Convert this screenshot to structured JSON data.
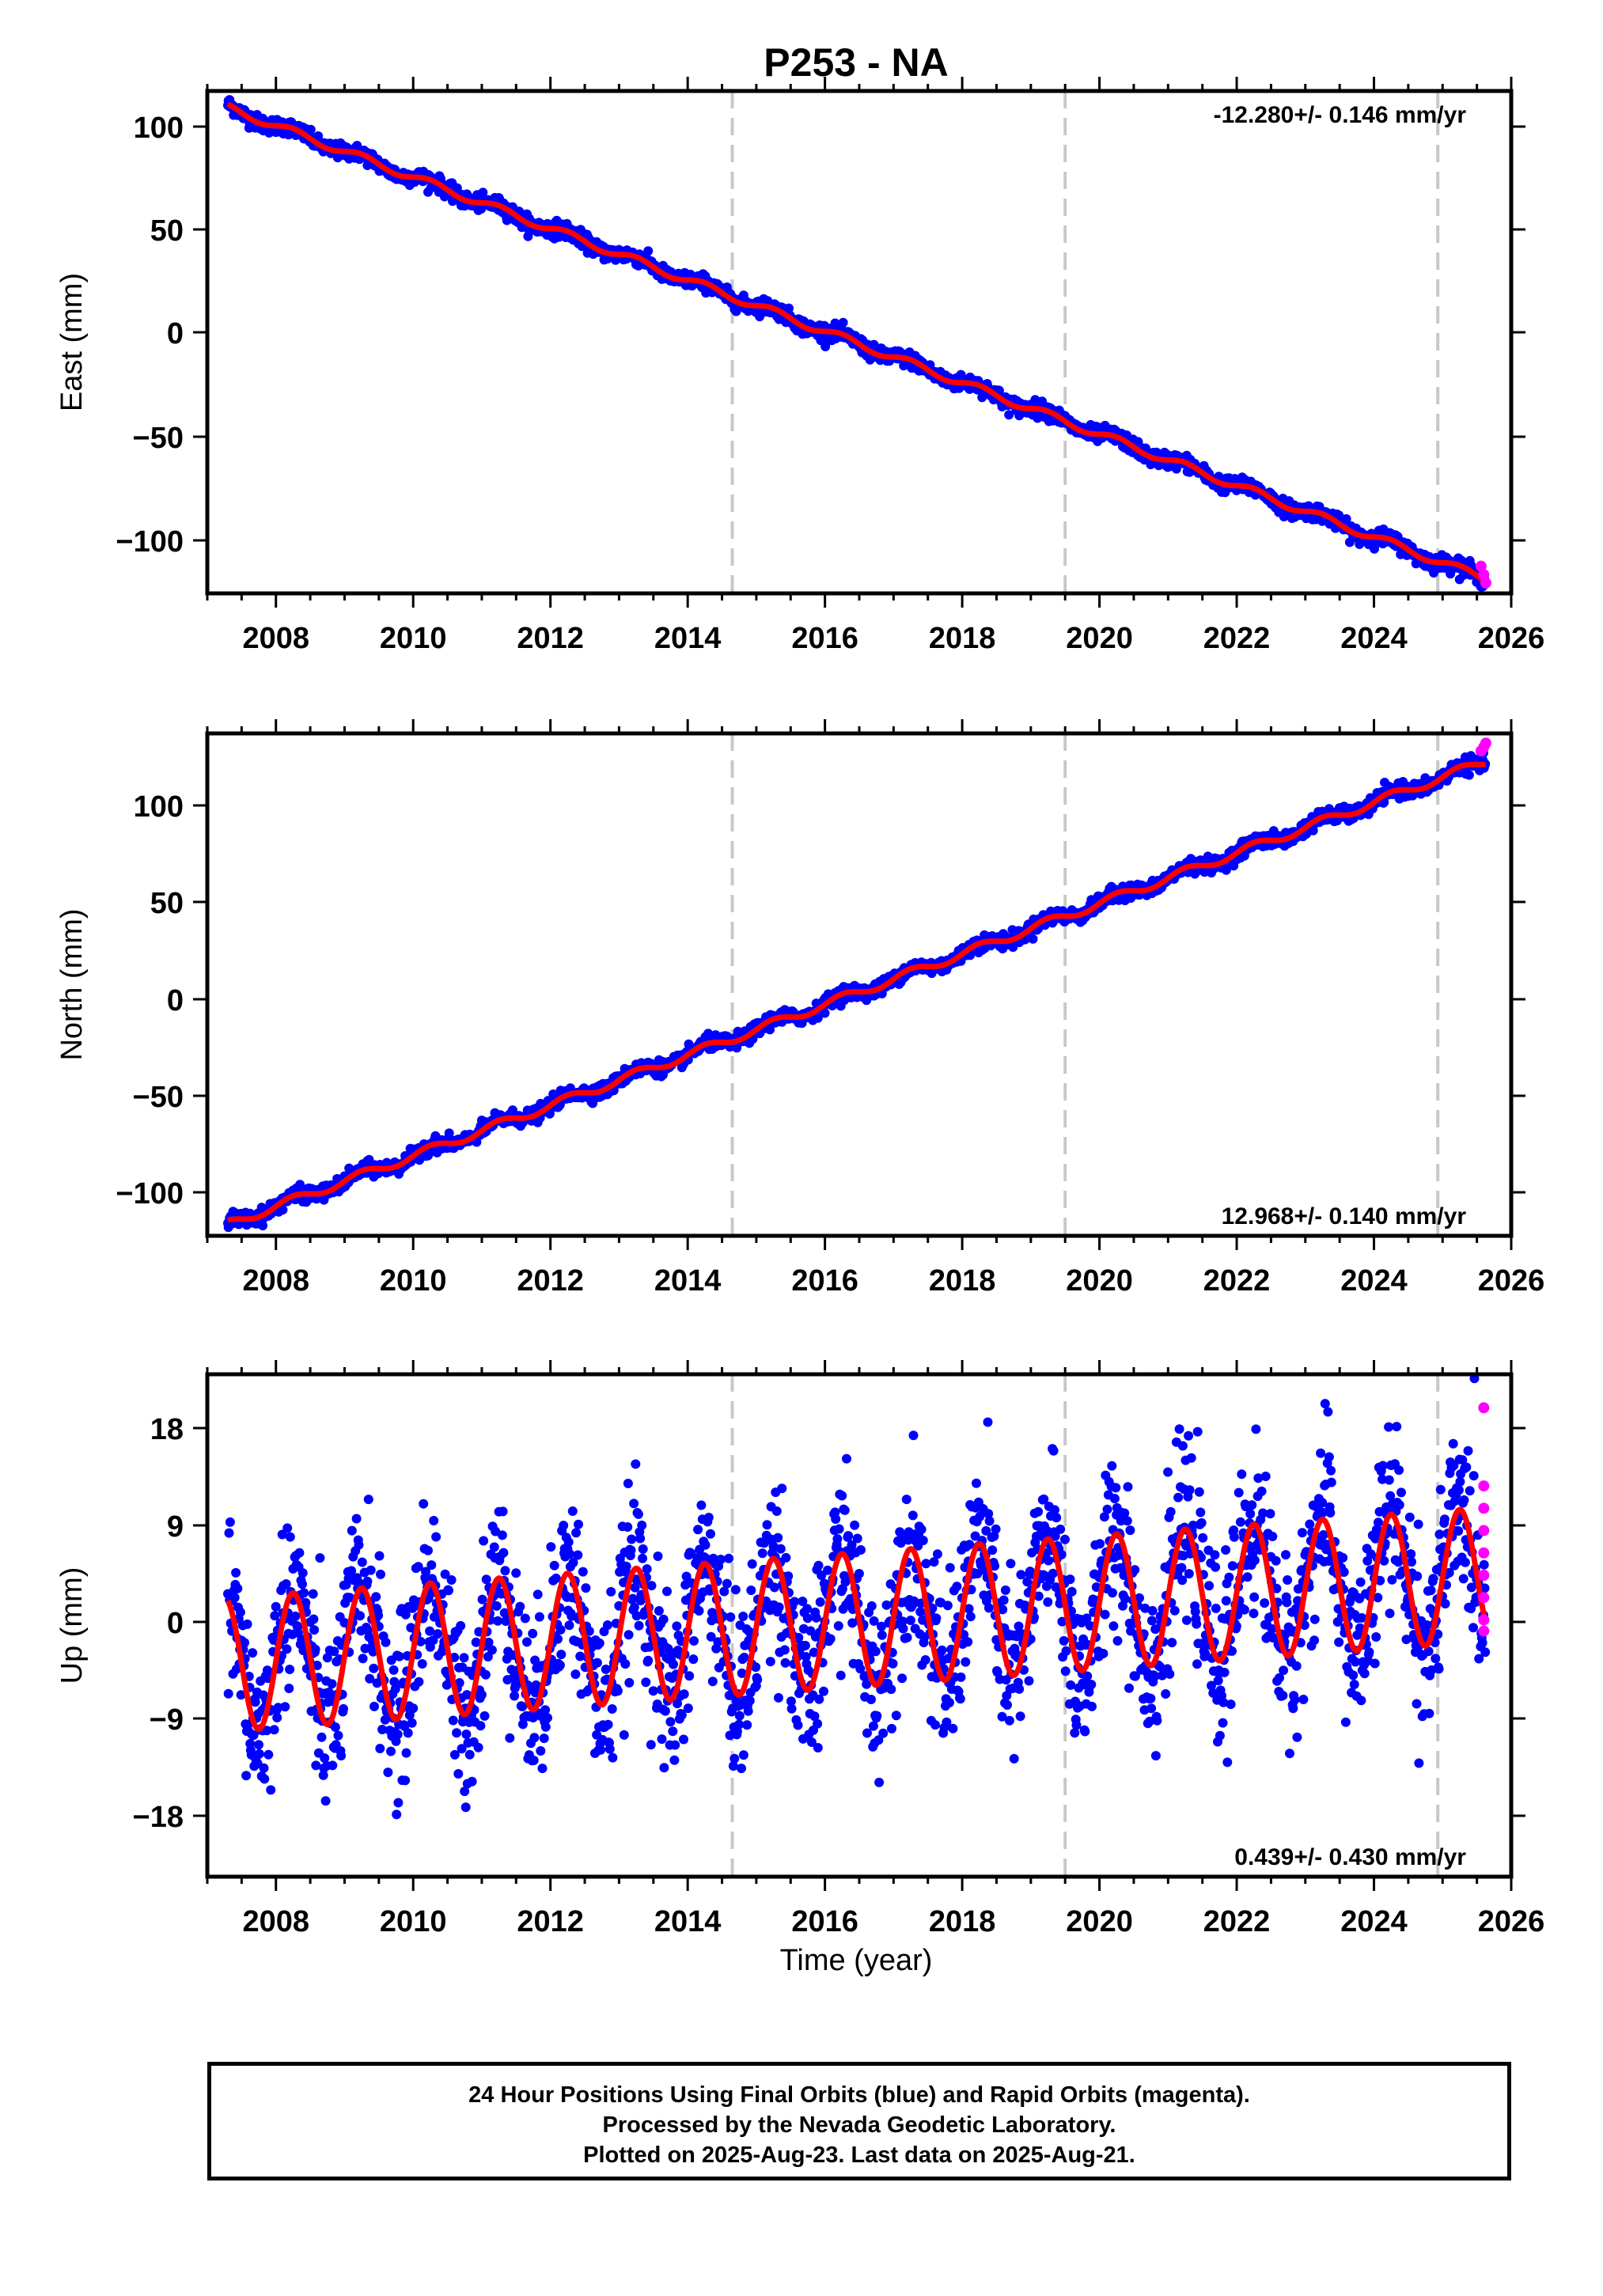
{
  "title": "P253 - NA",
  "colors": {
    "final": "#0000ff",
    "rapid": "#ff00ff",
    "model": "#ff0000",
    "steps": "#c8c8c8"
  },
  "xaxis": {
    "label": "Time (year)",
    "range": [
      2007.0,
      2026.0
    ],
    "ticks": [
      "2008",
      "2010",
      "2012",
      "2014",
      "2016",
      "2018",
      "2020",
      "2022",
      "2024",
      "2026"
    ]
  },
  "chart_data": [
    {
      "type": "scatter",
      "component": "east",
      "ylabel": "East (mm)",
      "rate": "-12.280+/- 0.146 mm/yr",
      "ylim": [
        -125,
        115
      ],
      "yticks": [
        "100",
        "50",
        "0",
        "−50",
        "−100"
      ],
      "x_range": [
        2007.3,
        2025.63
      ],
      "trend_rate": -12.28,
      "intercept_start": 107,
      "seasonal_amp": 1.8,
      "noise_sd": 1.8,
      "step_epochs": [
        2014.65,
        2019.5,
        2024.93
      ],
      "rapid": {
        "x": [
          2025.56,
          2025.6,
          2025.63
        ],
        "y": [
          -112,
          -116,
          -120
        ]
      }
    },
    {
      "type": "scatter",
      "component": "north",
      "ylabel": "North (mm)",
      "rate": "12.968+/- 0.140 mm/yr",
      "ylim": [
        -123,
        135
      ],
      "yticks": [
        "100",
        "50",
        "0",
        "−50",
        "−100"
      ],
      "x_range": [
        2007.3,
        2025.63
      ],
      "trend_rate": 12.968,
      "intercept_start": -117,
      "seasonal_amp": 2.2,
      "noise_sd": 1.8,
      "step_epochs": [
        2014.65,
        2019.5,
        2024.93
      ],
      "rapid": {
        "x": [
          2025.56,
          2025.6,
          2025.63
        ],
        "y": [
          126,
          128,
          130
        ]
      }
    },
    {
      "type": "scatter",
      "component": "up",
      "ylabel": "Up (mm)",
      "rate": "0.439+/- 0.430 mm/yr",
      "ylim": [
        -23,
        22
      ],
      "yticks": [
        "18",
        "9",
        "0",
        "−9",
        "−18"
      ],
      "x_range": [
        2007.3,
        2025.63
      ],
      "trend_rate": 0.439,
      "intercept_start": -4,
      "seasonal_amp": 6.0,
      "noise_sd": 3.8,
      "step_epochs": [
        2014.65,
        2019.5,
        2024.93
      ],
      "rapid": {
        "x": [
          2025.6,
          2025.6,
          2025.6,
          2025.6,
          2025.6,
          2025.6,
          2025.6,
          2025.6,
          2025.6
        ],
        "y": [
          19,
          12,
          10,
          8,
          6,
          4,
          2,
          0,
          -1
        ]
      }
    }
  ],
  "footer": {
    "line1": "24 Hour Positions Using Final Orbits (blue) and Rapid Orbits (magenta).",
    "line2": "Processed by the Nevada Geodetic Laboratory.",
    "line3": "Plotted on 2025-Aug-23. Last data on 2025-Aug-21."
  }
}
